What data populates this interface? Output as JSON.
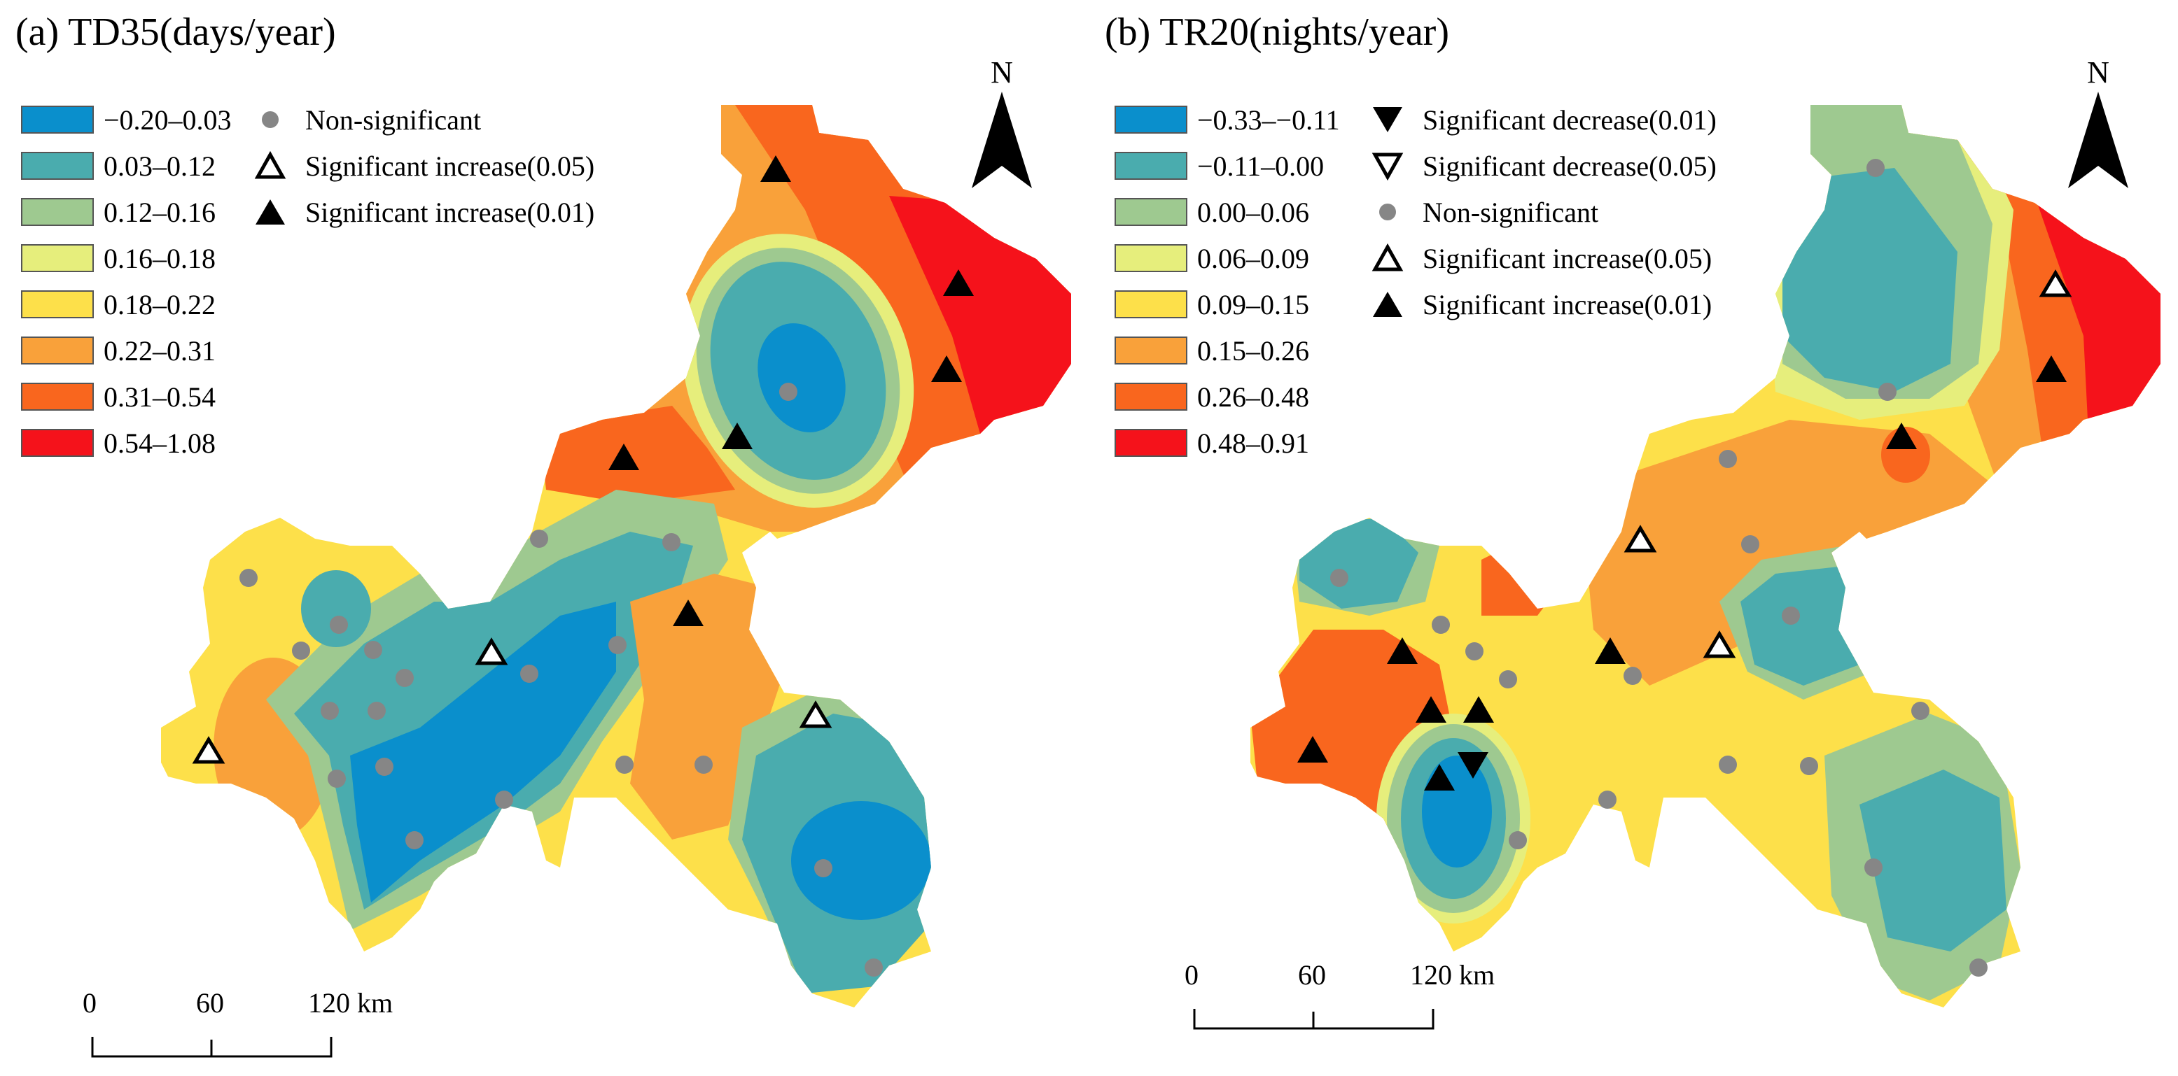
{
  "markers": {
    "non_significant": "Non-significant",
    "sig_inc_05": "Significant increase(0.05)",
    "sig_inc_01": "Significant increase(0.01)",
    "sig_dec_01": "Significant decrease(0.01)",
    "sig_dec_05": "Significant decrease(0.05)"
  },
  "north_label": "N",
  "scale": {
    "tick0": "0",
    "tick60": "60",
    "tick120": "120 km"
  },
  "panel_a": {
    "title": "(a) TD35(days/year)",
    "classes": [
      {
        "range": "−0.20–0.03",
        "color": "#0a8fcc"
      },
      {
        "range": "0.03–0.12",
        "color": "#4aacae"
      },
      {
        "range": "0.12–0.16",
        "color": "#9ec990"
      },
      {
        "range": "0.16–0.18",
        "color": "#e6ee7c"
      },
      {
        "range": "0.18–0.22",
        "color": "#fde04a"
      },
      {
        "range": "0.22–0.31",
        "color": "#f9a13a"
      },
      {
        "range": "0.31–0.54",
        "color": "#f9661e"
      },
      {
        "range": "0.54–1.08",
        "color": "#f5121b"
      }
    ]
  },
  "panel_b": {
    "title": "(b) TR20(nights/year)",
    "classes": [
      {
        "range": "−0.33–−0.11",
        "color": "#0a8fcc"
      },
      {
        "range": "−0.11–0.00",
        "color": "#4aacae"
      },
      {
        "range": "0.00–0.06",
        "color": "#9ec990"
      },
      {
        "range": "0.06–0.09",
        "color": "#e6ee7c"
      },
      {
        "range": "0.09–0.15",
        "color": "#fde04a"
      },
      {
        "range": "0.15–0.26",
        "color": "#f9a13a"
      },
      {
        "range": "0.26–0.48",
        "color": "#f9661e"
      },
      {
        "range": "0.48–0.91",
        "color": "#f5121b"
      }
    ]
  }
}
